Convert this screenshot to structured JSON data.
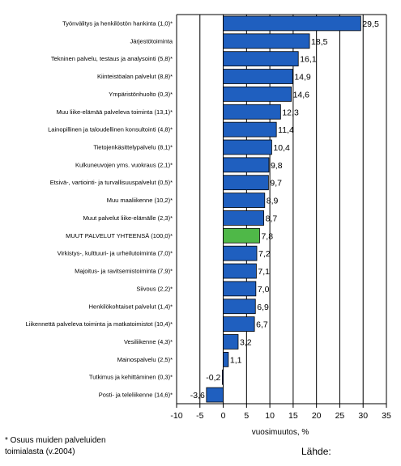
{
  "chart_data": {
    "type": "bar",
    "orientation": "horizontal",
    "categories": [
      "Työnvälitys ja henkilöstön hankinta (1,0)*",
      "Järjestötoiminta",
      "Tekninen palvelu, testaus ja analysointi (5,8)*",
      "Kiinteistöalan palvelut (8,8)*",
      "Ympäristönhuolto (0,3)*",
      "Muu liike-elämää palveleva toiminta (13,1)*",
      "Lainopillinen ja taloudellinen konsultointi (4,8)*",
      "Tietojenkäsittelypalvelu (8,1)*",
      "Kulkuneuvojen yms. vuokraus (2,1)*",
      "Etsivä-, vartiointi- ja turvallisuuspalvelut (0,5)*",
      "Muu maaliikenne (10,2)*",
      "Muut palvelut liike-elämälle (2,3)*",
      "MUUT PALVELUT YHTEENSÄ (100,0)*",
      "Virkistys-, kulttuuri- ja urheilutoiminta (7,0)*",
      "Majoitus- ja ravitsemistoiminta (7,9)*",
      "Siivous (2,2)*",
      "Henkilökohtaiset palvelut (1,4)*",
      "Liikennettä palveleva toiminta ja matkatoimistot (10,4)*",
      "Vesiliikenne (4,3)*",
      "Mainospalvelu (2,5)*",
      "Tutkimus ja kehittäminen (0,3)*",
      "Posti- ja teleliikenne (14,6)*"
    ],
    "values": [
      29.5,
      18.5,
      16.1,
      14.9,
      14.6,
      12.3,
      11.4,
      10.4,
      9.8,
      9.7,
      8.9,
      8.7,
      7.8,
      7.2,
      7.1,
      7.0,
      6.9,
      6.7,
      3.2,
      1.1,
      -0.2,
      -3.6
    ],
    "value_labels": [
      "29,5",
      "18,5",
      "16,1",
      "14,9",
      "14,6",
      "12,3",
      "11,4",
      "10,4",
      "9,8",
      "9,7",
      "8,9",
      "8,7",
      "7,8",
      "7,2",
      "7,1",
      "7,0",
      "6,9",
      "6,7",
      "3,2",
      "1,1",
      "-0,2",
      "-3,6"
    ],
    "highlight_index": 12,
    "xlim": [
      -10,
      35
    ],
    "xticks": [
      -10,
      -5,
      0,
      5,
      10,
      15,
      20,
      25,
      30,
      35
    ],
    "xlabel": "vuosimuutos, %",
    "grid": true,
    "colors": {
      "bar": "#1f5fbf",
      "highlight": "#4fb848",
      "bar_edge": "#000000",
      "grid": "#000000"
    }
  },
  "footnote": {
    "line1": "* Osuus muiden palveluiden",
    "line2": "toimialasta  (v.2004)"
  },
  "source_label": "Lähde:"
}
